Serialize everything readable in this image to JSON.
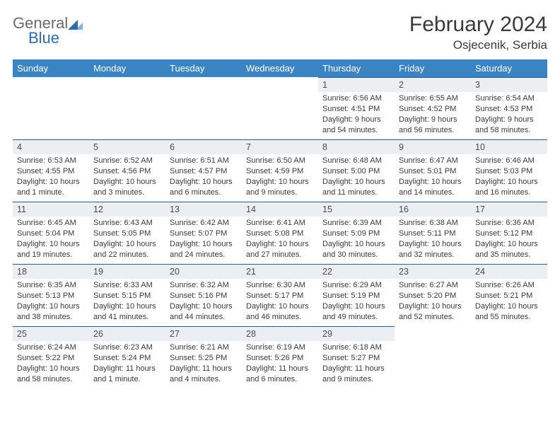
{
  "brand": {
    "name1": "General",
    "name2": "Blue"
  },
  "title": "February 2024",
  "location": "Osjecenik, Serbia",
  "colors": {
    "header_bg": "#3b84c4",
    "header_text": "#ffffff",
    "daynum_bg": "#eceff1",
    "daynum_border": "#2d5a8a",
    "body_text": "#3a3a3a",
    "brand_gray": "#6b6b6b",
    "brand_blue": "#2a6db0",
    "background": "#ffffff"
  },
  "fonts": {
    "title_size": 30,
    "location_size": 17,
    "header_size": 13,
    "daynum_size": 12.5,
    "body_size": 11
  },
  "weekdays": [
    "Sunday",
    "Monday",
    "Tuesday",
    "Wednesday",
    "Thursday",
    "Friday",
    "Saturday"
  ],
  "weeks": [
    [
      null,
      null,
      null,
      null,
      {
        "n": "1",
        "sr": "6:56 AM",
        "ss": "4:51 PM",
        "dl": "9 hours and 54 minutes."
      },
      {
        "n": "2",
        "sr": "6:55 AM",
        "ss": "4:52 PM",
        "dl": "9 hours and 56 minutes."
      },
      {
        "n": "3",
        "sr": "6:54 AM",
        "ss": "4:53 PM",
        "dl": "9 hours and 58 minutes."
      }
    ],
    [
      {
        "n": "4",
        "sr": "6:53 AM",
        "ss": "4:55 PM",
        "dl": "10 hours and 1 minute."
      },
      {
        "n": "5",
        "sr": "6:52 AM",
        "ss": "4:56 PM",
        "dl": "10 hours and 3 minutes."
      },
      {
        "n": "6",
        "sr": "6:51 AM",
        "ss": "4:57 PM",
        "dl": "10 hours and 6 minutes."
      },
      {
        "n": "7",
        "sr": "6:50 AM",
        "ss": "4:59 PM",
        "dl": "10 hours and 9 minutes."
      },
      {
        "n": "8",
        "sr": "6:48 AM",
        "ss": "5:00 PM",
        "dl": "10 hours and 11 minutes."
      },
      {
        "n": "9",
        "sr": "6:47 AM",
        "ss": "5:01 PM",
        "dl": "10 hours and 14 minutes."
      },
      {
        "n": "10",
        "sr": "6:46 AM",
        "ss": "5:03 PM",
        "dl": "10 hours and 16 minutes."
      }
    ],
    [
      {
        "n": "11",
        "sr": "6:45 AM",
        "ss": "5:04 PM",
        "dl": "10 hours and 19 minutes."
      },
      {
        "n": "12",
        "sr": "6:43 AM",
        "ss": "5:05 PM",
        "dl": "10 hours and 22 minutes."
      },
      {
        "n": "13",
        "sr": "6:42 AM",
        "ss": "5:07 PM",
        "dl": "10 hours and 24 minutes."
      },
      {
        "n": "14",
        "sr": "6:41 AM",
        "ss": "5:08 PM",
        "dl": "10 hours and 27 minutes."
      },
      {
        "n": "15",
        "sr": "6:39 AM",
        "ss": "5:09 PM",
        "dl": "10 hours and 30 minutes."
      },
      {
        "n": "16",
        "sr": "6:38 AM",
        "ss": "5:11 PM",
        "dl": "10 hours and 32 minutes."
      },
      {
        "n": "17",
        "sr": "6:36 AM",
        "ss": "5:12 PM",
        "dl": "10 hours and 35 minutes."
      }
    ],
    [
      {
        "n": "18",
        "sr": "6:35 AM",
        "ss": "5:13 PM",
        "dl": "10 hours and 38 minutes."
      },
      {
        "n": "19",
        "sr": "6:33 AM",
        "ss": "5:15 PM",
        "dl": "10 hours and 41 minutes."
      },
      {
        "n": "20",
        "sr": "6:32 AM",
        "ss": "5:16 PM",
        "dl": "10 hours and 44 minutes."
      },
      {
        "n": "21",
        "sr": "6:30 AM",
        "ss": "5:17 PM",
        "dl": "10 hours and 46 minutes."
      },
      {
        "n": "22",
        "sr": "6:29 AM",
        "ss": "5:19 PM",
        "dl": "10 hours and 49 minutes."
      },
      {
        "n": "23",
        "sr": "6:27 AM",
        "ss": "5:20 PM",
        "dl": "10 hours and 52 minutes."
      },
      {
        "n": "24",
        "sr": "6:26 AM",
        "ss": "5:21 PM",
        "dl": "10 hours and 55 minutes."
      }
    ],
    [
      {
        "n": "25",
        "sr": "6:24 AM",
        "ss": "5:22 PM",
        "dl": "10 hours and 58 minutes."
      },
      {
        "n": "26",
        "sr": "6:23 AM",
        "ss": "5:24 PM",
        "dl": "11 hours and 1 minute."
      },
      {
        "n": "27",
        "sr": "6:21 AM",
        "ss": "5:25 PM",
        "dl": "11 hours and 4 minutes."
      },
      {
        "n": "28",
        "sr": "6:19 AM",
        "ss": "5:26 PM",
        "dl": "11 hours and 6 minutes."
      },
      {
        "n": "29",
        "sr": "6:18 AM",
        "ss": "5:27 PM",
        "dl": "11 hours and 9 minutes."
      },
      null,
      null
    ]
  ],
  "labels": {
    "sunrise": "Sunrise:",
    "sunset": "Sunset:",
    "daylight": "Daylight:"
  }
}
